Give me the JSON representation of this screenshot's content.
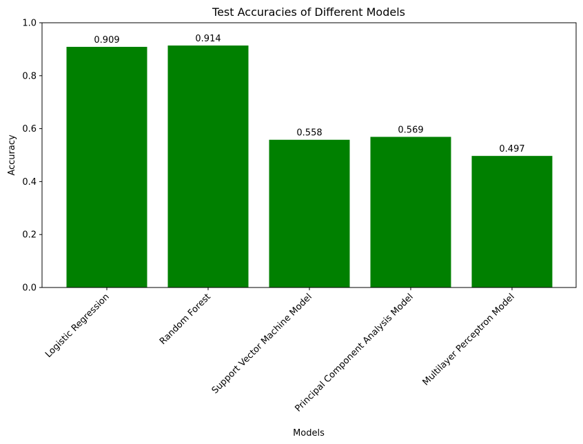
{
  "chart_data": {
    "type": "bar",
    "title": "Test Accuracies of Different Models",
    "xlabel": "Models",
    "ylabel": "Accuracy",
    "categories": [
      "Logistic Regression",
      "Random Forest",
      "Support Vector Machine Model",
      "Principal Component Analysis Model",
      "Multilayer Perceptron Model"
    ],
    "values": [
      0.909,
      0.914,
      0.558,
      0.569,
      0.497
    ],
    "data_labels": [
      "0.909",
      "0.914",
      "0.558",
      "0.569",
      "0.497"
    ],
    "ylim": [
      0,
      1.0
    ],
    "yticks": [
      0.0,
      0.2,
      0.4,
      0.6,
      0.8,
      1.0
    ],
    "ytick_labels": [
      "0.0",
      "0.2",
      "0.4",
      "0.6",
      "0.8",
      "1.0"
    ],
    "bar_color": "#008000",
    "grid": false,
    "legend": "none"
  }
}
